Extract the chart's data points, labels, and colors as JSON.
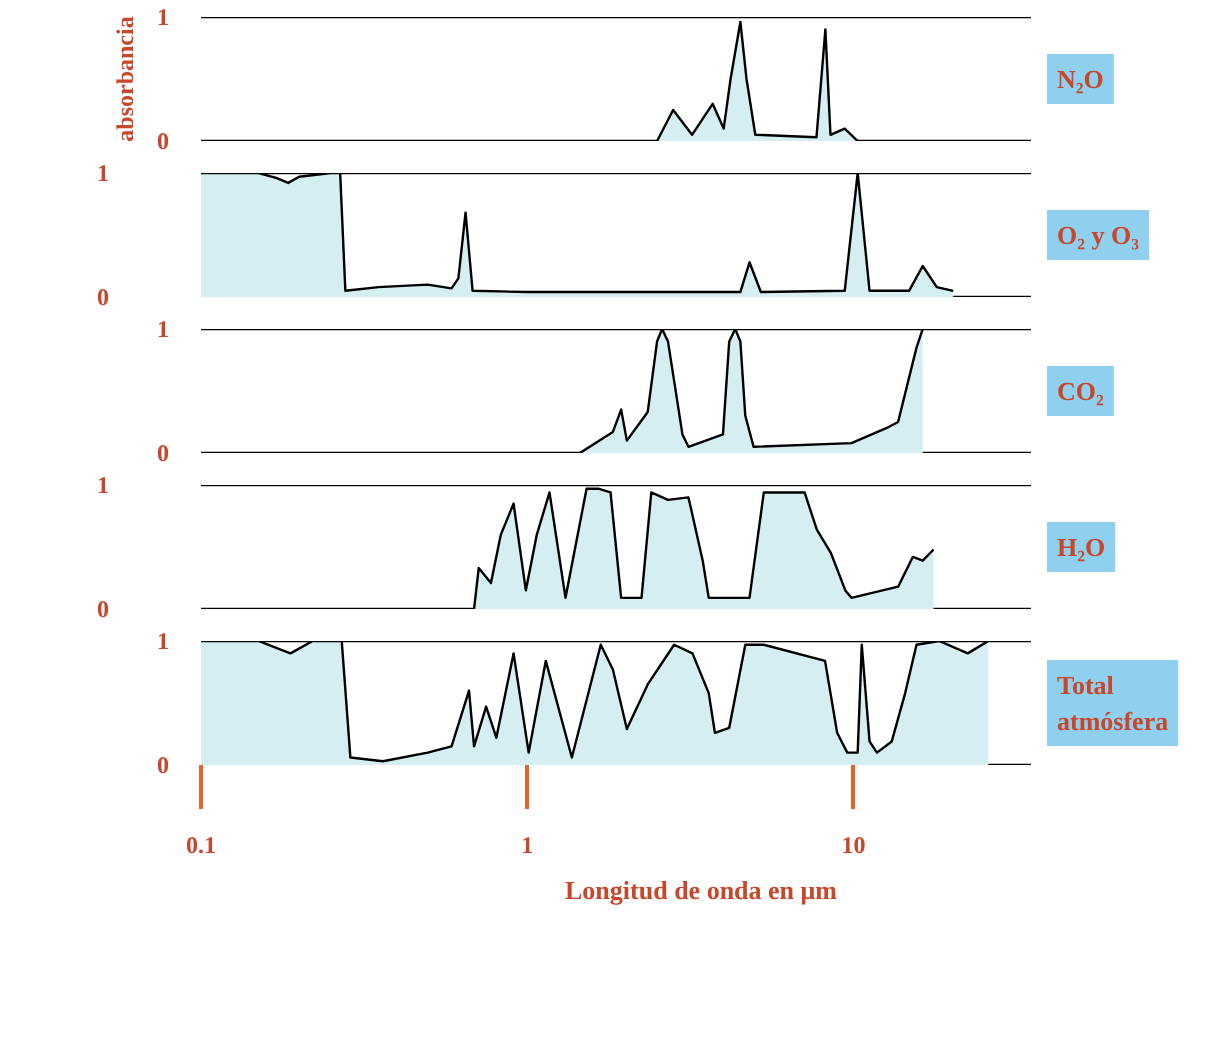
{
  "chart_data": [
    {
      "type": "area",
      "ylabel": "absorbancia",
      "log": "x",
      "tick_labels": "y",
      "xlim": [
        0.1,
        35
      ],
      "ylim": [
        0,
        1
      ],
      "yticks": [
        0,
        1
      ],
      "x": [
        2.5,
        2.8,
        3.2,
        3.7,
        4.0,
        4.2,
        4.5,
        4.7,
        5.0,
        7.7,
        8.2,
        8.5,
        9.4,
        10.3
      ],
      "series": [
        {
          "name": "N₂O",
          "color": "#d5eef2",
          "values": [
            0,
            0.25,
            0.05,
            0.3,
            0.1,
            0.5,
            0.96,
            0.5,
            0.05,
            0.03,
            0.9,
            0.05,
            0.1,
            0
          ]
        }
      ]
    },
    {
      "type": "area",
      "log": "x",
      "tick_labels": "y",
      "xlim": [
        0.1,
        35
      ],
      "ylim": [
        0,
        1
      ],
      "yticks": [
        0,
        1
      ],
      "x": [
        0.1,
        0.15,
        0.17,
        0.185,
        0.2,
        0.25,
        0.267,
        0.277,
        0.35,
        0.495,
        0.586,
        0.615,
        0.647,
        0.68,
        1,
        4.5,
        4.8,
        5.2,
        9.4,
        10.3,
        11.2,
        14.8,
        16.3,
        18,
        20.2
      ],
      "series": [
        {
          "name": "O₂ y O₃",
          "color": "#d5eef2",
          "values": [
            1,
            1,
            0.96,
            0.92,
            0.97,
            1,
            1,
            0.05,
            0.08,
            0.1,
            0.07,
            0.15,
            0.68,
            0.05,
            0.04,
            0.04,
            0.28,
            0.04,
            0.05,
            1,
            0.05,
            0.05,
            0.25,
            0.08,
            0.05
          ]
        }
      ]
    },
    {
      "type": "area",
      "log": "x",
      "tick_labels": "y",
      "xlim": [
        0.1,
        35
      ],
      "ylim": [
        0,
        1
      ],
      "yticks": [
        0,
        1
      ],
      "x": [
        1.45,
        1.83,
        1.94,
        2.02,
        2.34,
        2.5,
        2.59,
        2.7,
        2.99,
        3.12,
        3.98,
        4.16,
        4.34,
        4.5,
        4.66,
        4.94,
        9.86,
        12.6,
        13.7,
        15.6,
        16.3
      ],
      "series": [
        {
          "name": "CO₂",
          "color": "#d5eef2",
          "values": [
            0,
            0.17,
            0.35,
            0.1,
            0.33,
            0.9,
            1,
            0.9,
            0.15,
            0.05,
            0.15,
            0.9,
            1,
            0.9,
            0.3,
            0.05,
            0.08,
            0.2,
            0.25,
            0.85,
            1
          ]
        }
      ]
    },
    {
      "type": "area",
      "log": "x",
      "tick_labels": "y",
      "xlim": [
        0.1,
        35
      ],
      "ylim": [
        0,
        1
      ],
      "yticks": [
        0,
        1
      ],
      "x": [
        0.687,
        0.71,
        0.774,
        0.83,
        0.908,
        0.99,
        1.07,
        1.17,
        1.31,
        1.52,
        1.65,
        1.8,
        1.94,
        2.24,
        2.4,
        2.7,
        3.12,
        3.45,
        3.6,
        4.8,
        5.31,
        7.08,
        7.72,
        8.53,
        9.44,
        9.86,
        13.7,
        15.2,
        16.3,
        17.6
      ],
      "series": [
        {
          "name": "H₂O",
          "color": "#d5eef2",
          "values": [
            0,
            0.33,
            0.21,
            0.6,
            0.85,
            0.15,
            0.6,
            0.94,
            0.09,
            0.97,
            0.97,
            0.94,
            0.09,
            0.09,
            0.94,
            0.88,
            0.9,
            0.39,
            0.09,
            0.09,
            0.94,
            0.94,
            0.64,
            0.45,
            0.15,
            0.09,
            0.18,
            0.42,
            0.39,
            0.48
          ]
        }
      ]
    },
    {
      "type": "area",
      "xlabel": "Longitud de onda en μm",
      "log": "x",
      "xlim": [
        0.1,
        35
      ],
      "xticks": [
        0.1,
        1,
        10
      ],
      "ylim": [
        0,
        1
      ],
      "yticks": [
        0,
        1
      ],
      "x": [
        0.1,
        0.15,
        0.188,
        0.22,
        0.27,
        0.287,
        0.361,
        0.495,
        0.586,
        0.663,
        0.687,
        0.748,
        0.804,
        0.908,
        1.01,
        1.14,
        1.37,
        1.68,
        1.83,
        2.02,
        2.34,
        2.82,
        3.21,
        3.6,
        3.76,
        4.16,
        4.66,
        5.31,
        8.18,
        8.91,
        9.57,
        10.3,
        10.6,
        11.2,
        11.8,
        13.1,
        14.4,
        15.6,
        18.3,
        22.4,
        25.9
      ],
      "series": [
        {
          "name": "Total atmósfera",
          "color": "#d5eef2",
          "values": [
            1,
            1,
            0.9,
            1,
            1,
            0.06,
            0.03,
            0.1,
            0.15,
            0.6,
            0.15,
            0.47,
            0.22,
            0.9,
            0.1,
            0.84,
            0.06,
            0.97,
            0.77,
            0.29,
            0.65,
            0.97,
            0.9,
            0.58,
            0.26,
            0.3,
            0.97,
            0.97,
            0.84,
            0.26,
            0.1,
            0.1,
            0.97,
            0.19,
            0.1,
            0.19,
            0.58,
            0.97,
            1,
            0.9,
            1
          ]
        }
      ]
    }
  ]
}
